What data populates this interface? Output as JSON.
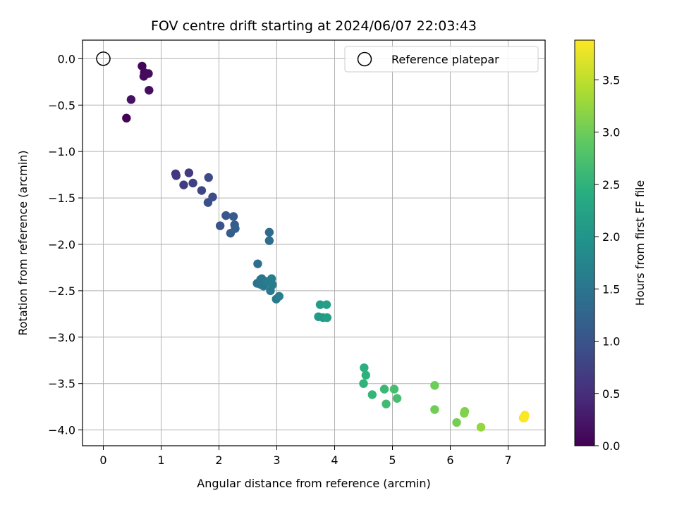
{
  "chart_data": {
    "type": "scatter",
    "title": "FOV centre drift starting at 2024/06/07 22:03:43",
    "xlabel": "Angular distance from reference (arcmin)",
    "ylabel": "Rotation from reference (arcmin)",
    "xlim": [
      -0.36,
      7.64
    ],
    "ylim": [
      -4.17,
      0.2
    ],
    "xticks": [
      0,
      1,
      2,
      3,
      4,
      5,
      6,
      7
    ],
    "xtick_labels": [
      "0",
      "1",
      "2",
      "3",
      "4",
      "5",
      "6",
      "7"
    ],
    "yticks": [
      0.0,
      -0.5,
      -1.0,
      -1.5,
      -2.0,
      -2.5,
      -3.0,
      -3.5,
      -4.0
    ],
    "ytick_labels": [
      "0.0",
      "−0.5",
      "−1.0",
      "−1.5",
      "−2.0",
      "−2.5",
      "−3.0",
      "−3.5",
      "−4.0"
    ],
    "grid": true,
    "legend": {
      "placement": "top-right",
      "entries": [
        "Reference platepar"
      ]
    },
    "reference_point": {
      "x": 0.0,
      "y": 0.0,
      "marker": "open-circle"
    },
    "colorbar": {
      "label": "Hours from first FF file",
      "colormap": "viridis",
      "range": [
        0.0,
        3.88
      ],
      "ticks": [
        0.0,
        0.5,
        1.0,
        1.5,
        2.0,
        2.5,
        3.0,
        3.5
      ],
      "tick_labels": [
        "0.0",
        "0.5",
        "1.0",
        "1.5",
        "2.0",
        "2.5",
        "3.0",
        "3.5"
      ]
    },
    "series": [
      {
        "marker": "filled-circle",
        "x": [
          0.67,
          0.71,
          0.7,
          0.78,
          0.79,
          0.48,
          0.4,
          1.25,
          1.26,
          1.48,
          1.39,
          1.55,
          1.7,
          1.82,
          1.89,
          1.81,
          2.12,
          2.25,
          2.02,
          2.27,
          2.2,
          2.28,
          2.87,
          2.87,
          2.67,
          2.66,
          2.72,
          2.74,
          2.71,
          2.77,
          2.82,
          2.85,
          2.91,
          2.92,
          2.89,
          2.92,
          2.99,
          3.04,
          3.75,
          3.86,
          3.8,
          3.72,
          3.87,
          4.51,
          4.54,
          4.5,
          4.65,
          4.86,
          4.89,
          5.03,
          5.08,
          5.73,
          5.73,
          6.25,
          6.24,
          6.11,
          6.53,
          7.28,
          7.26,
          7.29
        ],
        "y": [
          -0.08,
          -0.15,
          -0.19,
          -0.16,
          -0.34,
          -0.44,
          -0.64,
          -1.24,
          -1.26,
          -1.23,
          -1.36,
          -1.34,
          -1.42,
          -1.28,
          -1.49,
          -1.55,
          -1.69,
          -1.7,
          -1.8,
          -1.79,
          -1.88,
          -1.83,
          -1.87,
          -1.96,
          -2.21,
          -2.42,
          -2.38,
          -2.37,
          -2.43,
          -2.45,
          -2.4,
          -2.41,
          -2.37,
          -2.43,
          -2.5,
          -2.44,
          -2.59,
          -2.56,
          -2.65,
          -2.65,
          -2.79,
          -2.78,
          -2.79,
          -3.33,
          -3.41,
          -3.5,
          -3.62,
          -3.56,
          -3.72,
          -3.56,
          -3.66,
          -3.52,
          -3.78,
          -3.8,
          -3.82,
          -3.92,
          -3.97,
          -3.87,
          -3.87,
          -3.84
        ],
        "hours": [
          0.05,
          0.08,
          0.1,
          0.12,
          0.15,
          0.2,
          0.02,
          0.6,
          0.62,
          0.65,
          0.7,
          0.75,
          0.8,
          0.85,
          0.9,
          0.95,
          1.05,
          1.1,
          1.0,
          1.15,
          1.12,
          1.18,
          1.35,
          1.38,
          1.4,
          1.45,
          1.5,
          1.48,
          1.52,
          1.55,
          1.58,
          1.6,
          1.62,
          1.63,
          1.56,
          1.61,
          1.55,
          1.65,
          2.1,
          2.15,
          2.12,
          2.08,
          2.18,
          2.45,
          2.48,
          2.5,
          2.55,
          2.6,
          2.65,
          2.7,
          2.72,
          3.0,
          3.02,
          3.1,
          3.12,
          3.05,
          3.25,
          3.85,
          3.88,
          3.86
        ]
      }
    ]
  }
}
